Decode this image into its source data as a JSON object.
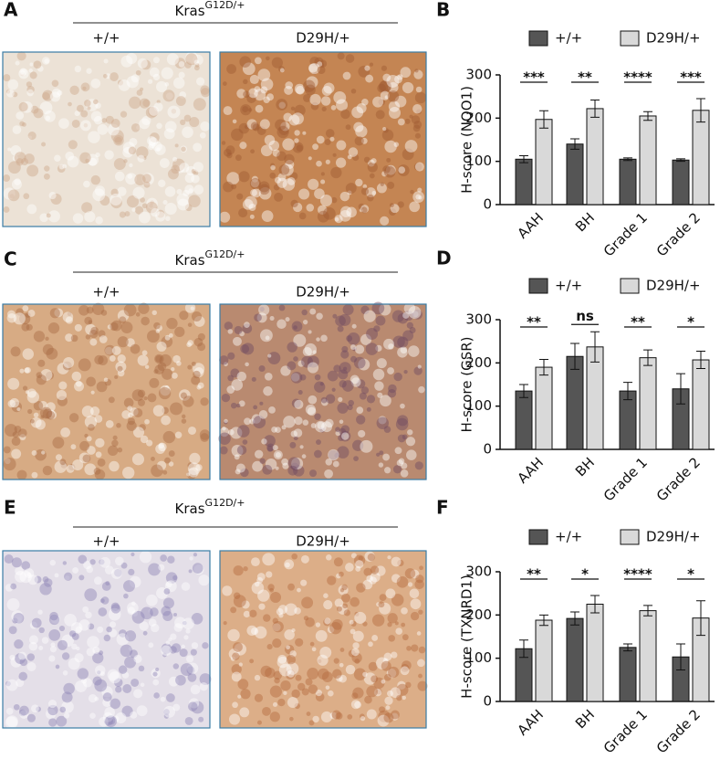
{
  "panels": [
    {
      "label": "A",
      "heading": "Kras",
      "heading_sup": "G12D/+",
      "images": [
        "+/+",
        "D29H/+"
      ]
    },
    {
      "label": "C",
      "heading": "Kras",
      "heading_sup": "G12D/+",
      "images": [
        "+/+",
        "D29H/+"
      ]
    },
    {
      "label": "E",
      "heading": "Kras",
      "heading_sup": "G12D/+",
      "images": [
        "+/+",
        "D29H/+"
      ]
    }
  ],
  "chart_data": [
    {
      "type": "bar",
      "label": "B",
      "ylabel": "H-score (NQO1)",
      "categories": [
        "AAH",
        "BH",
        "Grade 1",
        "Grade 2"
      ],
      "series": [
        {
          "name": "+/+",
          "color": "#555555",
          "values": [
            105,
            140,
            105,
            103
          ],
          "errors": [
            8,
            12,
            3,
            3
          ]
        },
        {
          "name": "D29H/+",
          "color": "#d9d9d9",
          "values": [
            197,
            222,
            205,
            218
          ],
          "errors": [
            20,
            20,
            10,
            27
          ]
        }
      ],
      "significance": [
        "***",
        "**",
        "****",
        "***"
      ],
      "ylim": [
        0,
        300
      ],
      "yticks": [
        0,
        100,
        200,
        300
      ]
    },
    {
      "type": "bar",
      "label": "D",
      "ylabel": "H-score (GSR)",
      "categories": [
        "AAH",
        "BH",
        "Grade 1",
        "Grade 2"
      ],
      "series": [
        {
          "name": "+/+",
          "color": "#555555",
          "values": [
            135,
            215,
            135,
            140
          ],
          "errors": [
            15,
            30,
            20,
            35
          ]
        },
        {
          "name": "D29H/+",
          "color": "#d9d9d9",
          "values": [
            190,
            237,
            212,
            207
          ],
          "errors": [
            18,
            35,
            18,
            20
          ]
        }
      ],
      "significance": [
        "**",
        "ns",
        "**",
        "*"
      ],
      "ylim": [
        0,
        300
      ],
      "yticks": [
        0,
        100,
        200,
        300
      ]
    },
    {
      "type": "bar",
      "label": "F",
      "ylabel": "H-score (TXNRD1)",
      "categories": [
        "AAH",
        "BH",
        "Grade 1",
        "Grade 2"
      ],
      "series": [
        {
          "name": "+/+",
          "color": "#555555",
          "values": [
            122,
            192,
            125,
            103
          ],
          "errors": [
            20,
            15,
            8,
            30
          ]
        },
        {
          "name": "D29H/+",
          "color": "#d9d9d9",
          "values": [
            188,
            225,
            210,
            193
          ],
          "errors": [
            12,
            20,
            12,
            40
          ]
        }
      ],
      "significance": [
        "**",
        "*",
        "****",
        "*"
      ],
      "ylim": [
        0,
        300
      ],
      "yticks": [
        0,
        100,
        200,
        300
      ]
    }
  ]
}
